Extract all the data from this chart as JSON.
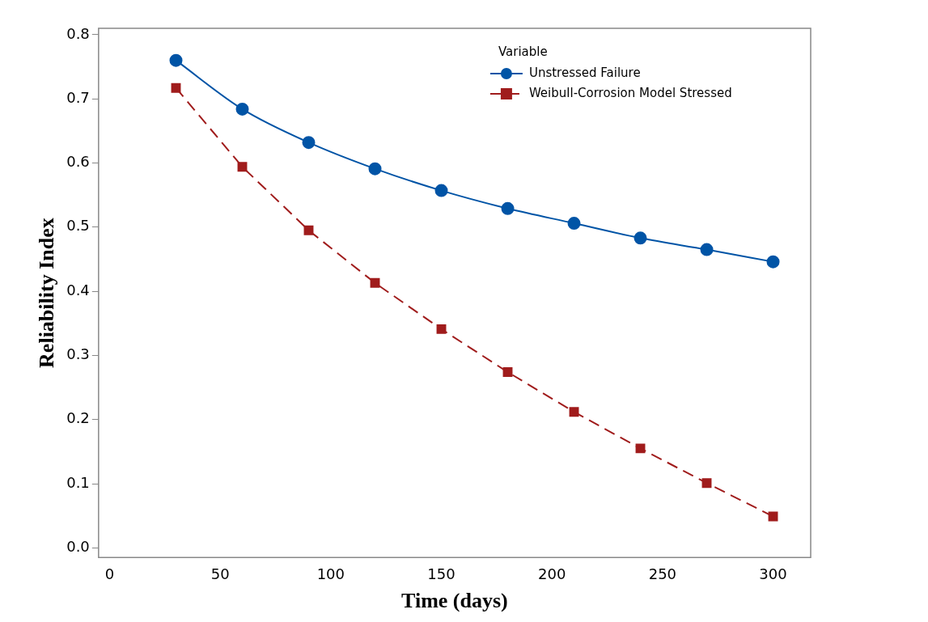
{
  "chart_data": {
    "type": "line",
    "xlabel": "Time (days)",
    "ylabel": "Reliability Index",
    "legend_title": "Variable",
    "legend": "top right",
    "grid": false,
    "x": [
      30,
      60,
      90,
      120,
      150,
      180,
      210,
      240,
      270,
      300
    ],
    "xlim": [
      -5,
      317
    ],
    "xticks": [
      0,
      50,
      100,
      150,
      200,
      250,
      300
    ],
    "ylim": [
      -0.015,
      0.81
    ],
    "yticks": [
      {
        "value": 0,
        "label": "0.0"
      },
      0.1,
      0.2,
      0.3,
      0.4,
      0.5,
      0.6,
      0.7,
      0.8
    ],
    "series": [
      {
        "name": "Unstressed Failure",
        "color": "#0054a6",
        "marker": "circle",
        "line_style": "solid",
        "values": [
          0.76,
          0.684,
          0.632,
          0.591,
          0.557,
          0.529,
          0.506,
          0.483,
          0.465,
          0.446
        ]
      },
      {
        "name": "Weibull-Corrosion Model Stressed",
        "color": "#a01c1c",
        "marker": "square",
        "line_style": "dashed",
        "values": [
          0.717,
          0.594,
          0.495,
          0.413,
          0.341,
          0.274,
          0.212,
          0.155,
          0.101,
          0.049
        ]
      }
    ]
  }
}
